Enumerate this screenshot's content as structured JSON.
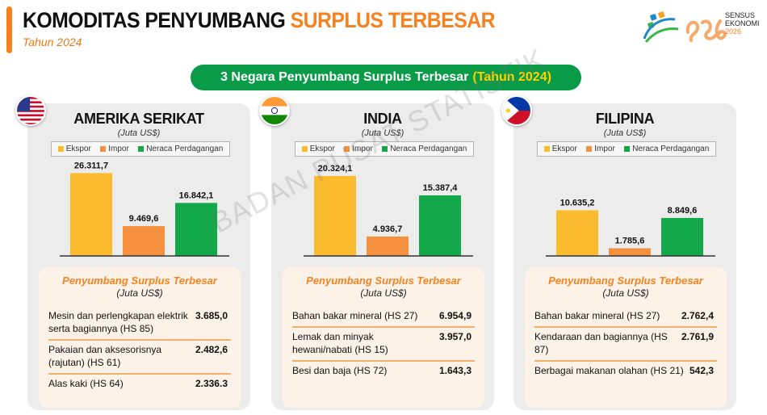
{
  "header": {
    "title_part1": "KOMODITAS PENYUMBANG",
    "title_part2": "SURPLUS TERBESAR",
    "subtitle": "Tahun 2024"
  },
  "logo": {
    "line1": "SENSUS",
    "line2": "EKONOMI",
    "line3": "2026"
  },
  "banner": {
    "text": "3 Negara Penyumbang Surplus Terbesar",
    "highlight": "(Tahun 2024)"
  },
  "watermark": "BADAN PUSAT STATISTIK",
  "colors": {
    "ekspor": "#fbbb2e",
    "impor": "#f5913e",
    "neraca": "#13a84a",
    "accent": "#f5821f",
    "banner": "#0a9b48"
  },
  "chart_data": [
    {
      "type": "bar",
      "title": "AMERIKA SERIKAT",
      "subtitle": "(Juta US$)",
      "categories": [
        "Ekspor",
        "Impor",
        "Neraca Perdagangan"
      ],
      "values": [
        26311.7,
        9469.6,
        16842.1
      ],
      "value_labels": [
        "26.311,7",
        "9.469,6",
        "16.842,1"
      ],
      "legend": [
        "Ekspor",
        "Impor",
        "Neraca Perdagangan"
      ],
      "legend_position": "top",
      "ylim": [
        0,
        30000
      ],
      "grid": false
    },
    {
      "type": "bar",
      "title": "INDIA",
      "subtitle": "(Juta US$)",
      "categories": [
        "Ekspor",
        "Impor",
        "Neraca Perdagangan"
      ],
      "values": [
        20324.1,
        4936.7,
        15387.4
      ],
      "value_labels": [
        "20.324,1",
        "4.936,7",
        "15.387,4"
      ],
      "legend": [
        "Ekspor",
        "Impor",
        "Neraca Perdagangan"
      ],
      "legend_position": "top",
      "ylim": [
        0,
        24000
      ],
      "grid": false
    },
    {
      "type": "bar",
      "title": "FILIPINA",
      "subtitle": "(Juta US$)",
      "categories": [
        "Ekspor",
        "Impor",
        "Neraca Perdagangan"
      ],
      "values": [
        10635.2,
        1785.6,
        8849.6
      ],
      "value_labels": [
        "10.635,2",
        "1.785,6",
        "8.849,6"
      ],
      "legend": [
        "Ekspor",
        "Impor",
        "Neraca Perdagangan"
      ],
      "legend_position": "top",
      "ylim": [
        0,
        22000
      ],
      "grid": false
    }
  ],
  "countries": [
    {
      "name": "AMERIKA SERIKAT",
      "flag_icon": "usa-flag-icon",
      "unit": "(Juta US$)",
      "panel_title": "Penyumbang Surplus Terbesar",
      "panel_unit": "(Juta US$)",
      "items": [
        {
          "label": "Mesin dan perlengkapan elektrik serta bagiannya (HS 85)",
          "value": "3.685,0"
        },
        {
          "label": "Pakaian dan aksesorisnya (rajutan) (HS 61)",
          "value": "2.482,6"
        },
        {
          "label": "Alas kaki (HS 64)",
          "value": "2.336.3"
        }
      ]
    },
    {
      "name": "INDIA",
      "flag_icon": "india-flag-icon",
      "unit": "(Juta US$)",
      "panel_title": "Penyumbang Surplus Terbesar",
      "panel_unit": "(Juta US$)",
      "items": [
        {
          "label": "Bahan bakar mineral (HS 27)",
          "value": "6.954,9"
        },
        {
          "label": "Lemak dan minyak hewani/nabati (HS 15)",
          "value": "3.957,0"
        },
        {
          "label": "Besi dan baja (HS 72)",
          "value": "1.643,3"
        }
      ]
    },
    {
      "name": "FILIPINA",
      "flag_icon": "philippines-flag-icon",
      "unit": "(Juta US$)",
      "panel_title": "Penyumbang Surplus Terbesar",
      "panel_unit": "(Juta US$)",
      "items": [
        {
          "label": "Bahan bakar mineral (HS 27)",
          "value": "2.762,4"
        },
        {
          "label": "Kendaraan dan bagiannya (HS 87)",
          "value": "2.761,9"
        },
        {
          "label": "Berbagai makanan olahan (HS 21)",
          "value": "542,3"
        }
      ]
    }
  ]
}
